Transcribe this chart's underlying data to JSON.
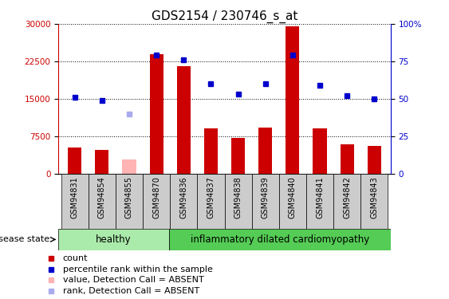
{
  "title": "GDS2154 / 230746_s_at",
  "samples": [
    "GSM94831",
    "GSM94854",
    "GSM94855",
    "GSM94870",
    "GSM94836",
    "GSM94837",
    "GSM94838",
    "GSM94839",
    "GSM94840",
    "GSM94841",
    "GSM94842",
    "GSM94843"
  ],
  "bar_values": [
    5200,
    4700,
    2800,
    24000,
    21500,
    9000,
    7200,
    9200,
    29500,
    9000,
    5800,
    5500
  ],
  "bar_colors": [
    "#cc0000",
    "#cc0000",
    "#ffb3b3",
    "#cc0000",
    "#cc0000",
    "#cc0000",
    "#cc0000",
    "#cc0000",
    "#cc0000",
    "#cc0000",
    "#cc0000",
    "#cc0000"
  ],
  "rank_values_pct": [
    51,
    49,
    40,
    79,
    76,
    60,
    53,
    60,
    79,
    59,
    52,
    50
  ],
  "rank_colors": [
    "#0000cc",
    "#0000cc",
    "#aaaaee",
    "#0000cc",
    "#0000cc",
    "#0000cc",
    "#0000cc",
    "#0000cc",
    "#0000cc",
    "#0000cc",
    "#0000cc",
    "#0000cc"
  ],
  "healthy_count": 4,
  "healthy_label": "healthy",
  "disease_label": "inflammatory dilated cardiomyopathy",
  "disease_state_label": "disease state",
  "ylim_left": [
    0,
    30000
  ],
  "ylim_right": [
    0,
    100
  ],
  "yticks_left": [
    0,
    7500,
    15000,
    22500,
    30000
  ],
  "yticks_right": [
    0,
    25,
    50,
    75,
    100
  ],
  "left_axis_color": "#cc0000",
  "right_axis_color": "#0000cc",
  "bg_color": "#ffffff",
  "legend_items": [
    {
      "label": "count",
      "color": "#cc0000"
    },
    {
      "label": "percentile rank within the sample",
      "color": "#0000cc"
    },
    {
      "label": "value, Detection Call = ABSENT",
      "color": "#ffb3b3"
    },
    {
      "label": "rank, Detection Call = ABSENT",
      "color": "#aaaaee"
    }
  ],
  "healthy_bg": "#aaeaaa",
  "disease_bg": "#55cc55",
  "tick_fontsize": 7.5,
  "title_fontsize": 11,
  "annotation_fontsize": 8.5,
  "legend_fontsize": 8
}
